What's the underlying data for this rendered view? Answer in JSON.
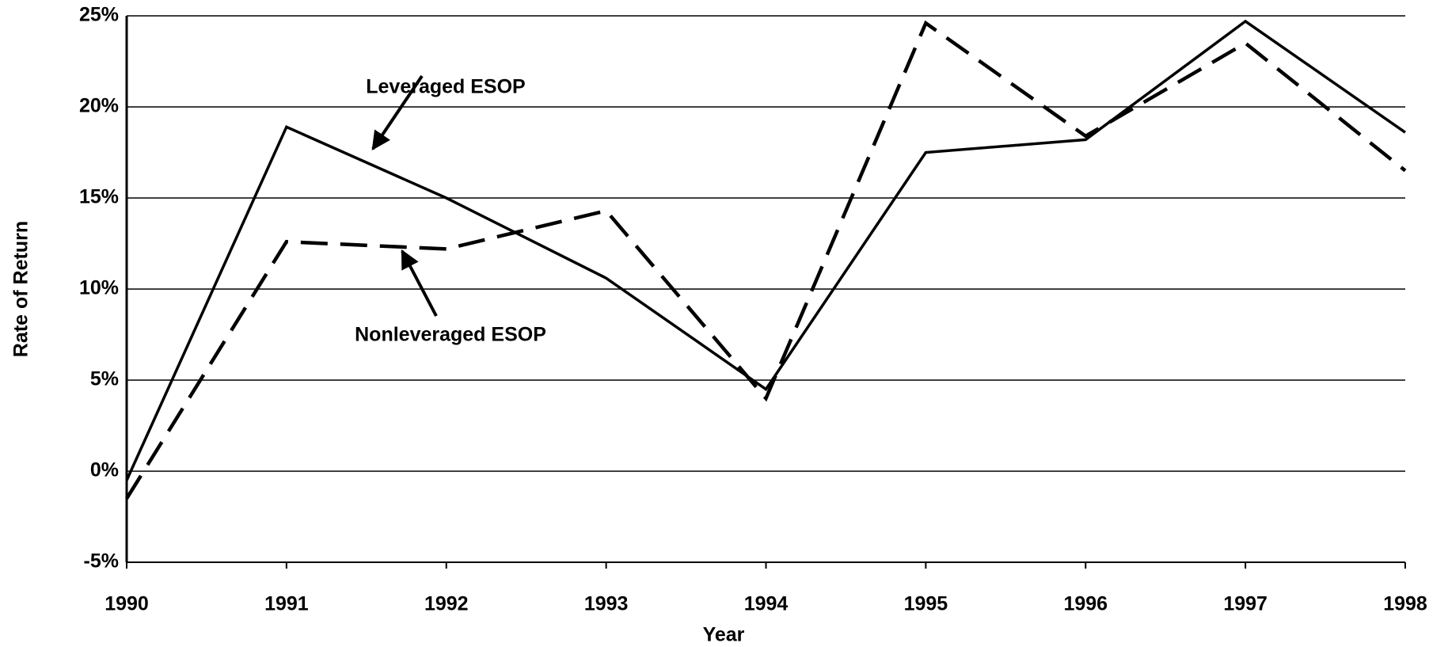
{
  "chart_data": {
    "type": "line",
    "x_label": "Year",
    "y_label": "Rate of Return",
    "x": [
      1990,
      1991,
      1992,
      1993,
      1994,
      1995,
      1996,
      1997,
      1998
    ],
    "series": [
      {
        "name": "Leveraged ESOP",
        "color": "#000000",
        "line_style": "solid",
        "values": [
          -0.5,
          18.9,
          15.0,
          10.6,
          4.5,
          17.5,
          18.2,
          24.7,
          18.6
        ]
      },
      {
        "name": "Nonleveraged ESOP",
        "color": "#000000",
        "line_style": "dashed",
        "values": [
          -1.5,
          12.6,
          12.2,
          14.3,
          4.0,
          24.6,
          18.4,
          23.5,
          16.5
        ]
      }
    ],
    "xlim": [
      1990,
      1998
    ],
    "xticks": [
      1990,
      1991,
      1992,
      1993,
      1994,
      1995,
      1996,
      1997,
      1998
    ],
    "ylim": [
      -5,
      25
    ],
    "yticks": [
      {
        "value": -5,
        "label": "-5%"
      },
      {
        "value": 0,
        "label": "0%"
      },
      {
        "value": 5,
        "label": "5%"
      },
      {
        "value": 10,
        "label": "10%"
      },
      {
        "value": 15,
        "label": "15%"
      },
      {
        "value": 20,
        "label": "20%"
      },
      {
        "value": 25,
        "label": "25%"
      }
    ],
    "grid": true
  }
}
